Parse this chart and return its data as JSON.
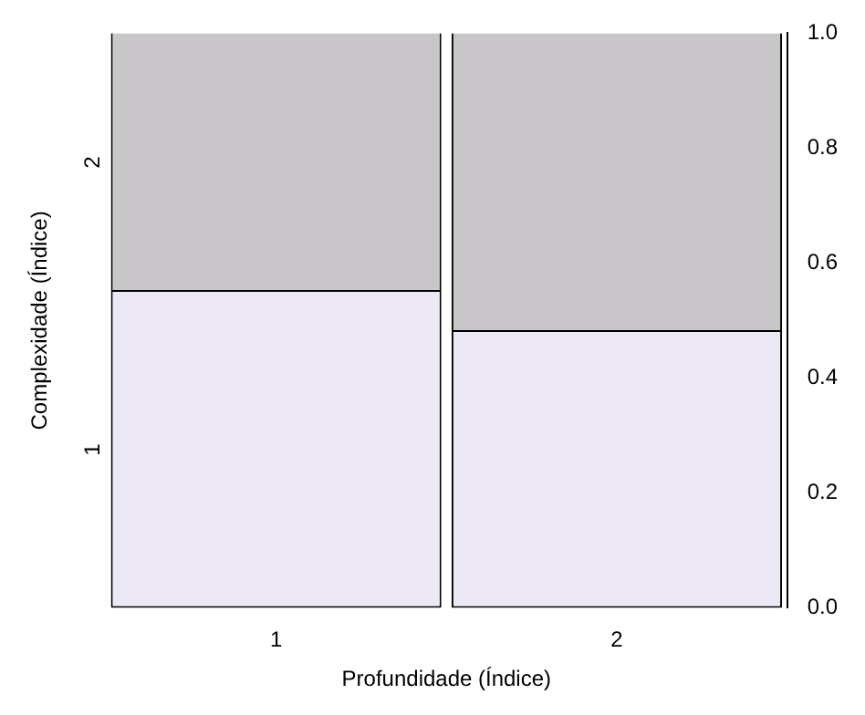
{
  "chart_data": {
    "type": "bar",
    "stacked": true,
    "xlabel": "Profundidade (Índice)",
    "ylabel": "Complexidade (Índice)",
    "categories": [
      "1",
      "2"
    ],
    "series": [
      {
        "name": "1",
        "color": "#ece8f5",
        "values": [
          0.55,
          0.48
        ]
      },
      {
        "name": "2",
        "color": "#c8c6c8",
        "values": [
          0.45,
          0.52
        ]
      }
    ],
    "ylim": [
      0,
      1
    ],
    "yticks": [
      {
        "value": 0,
        "label": "0.0"
      },
      0.2,
      0.4,
      0.6,
      0.8,
      {
        "value": 1,
        "label": "1.0"
      }
    ],
    "grid": false,
    "legend": false
  }
}
